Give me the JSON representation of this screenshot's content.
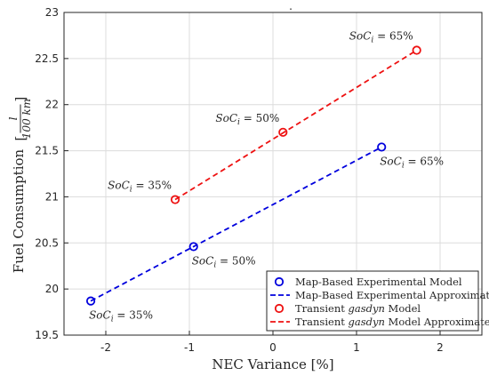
{
  "chart_data": {
    "type": "scatter",
    "xlabel": "NEC Variance [%]",
    "ylabel": "Fuel Consumption",
    "ylabel_unit": {
      "num": "l",
      "den": "100 km"
    },
    "title": ".",
    "xlim": [
      -2.5,
      2.5
    ],
    "ylim": [
      19.5,
      23
    ],
    "xticks": [
      -2,
      -1,
      0,
      1,
      2
    ],
    "yticks": [
      19.5,
      20,
      20.5,
      21,
      21.5,
      22,
      22.5,
      23
    ],
    "xtick_labels": [
      "-2",
      "-1",
      "0",
      "1",
      "2"
    ],
    "ytick_labels": [
      "19.5",
      "20",
      "20.5",
      "21",
      "21.5",
      "22",
      "22.5",
      "23"
    ],
    "grid": true,
    "legend_position": "bottom-right",
    "series": [
      {
        "name": "Map-Based Experimental Model",
        "kind": "markers",
        "color": "#0000dd",
        "x": [
          -2.18,
          -0.95,
          1.3
        ],
        "y": [
          19.87,
          20.46,
          21.54
        ]
      },
      {
        "name": "Map-Based Experimental Approximated",
        "kind": "dashed-line",
        "color": "#0000dd",
        "x": [
          -2.18,
          1.3
        ],
        "y": [
          19.87,
          21.54
        ]
      },
      {
        "name": "Transient gasdyn Model",
        "kind": "markers",
        "color": "#ee1111",
        "x": [
          -1.17,
          0.12,
          1.72
        ],
        "y": [
          20.97,
          21.7,
          22.59
        ]
      },
      {
        "name": "Transient gasdyn Model Approximated",
        "kind": "dashed-line",
        "color": "#ee1111",
        "x": [
          -1.17,
          1.72
        ],
        "y": [
          20.97,
          22.59
        ]
      }
    ],
    "annotations": [
      {
        "var": "SoC",
        "sub": "i",
        "value": "= 35%",
        "x": -2.18,
        "y": 19.87,
        "place": "below-right"
      },
      {
        "var": "SoC",
        "sub": "i",
        "value": "= 50%",
        "x": -0.95,
        "y": 20.46,
        "place": "below-right"
      },
      {
        "var": "SoC",
        "sub": "i",
        "value": "= 65%",
        "x": 1.3,
        "y": 21.54,
        "place": "below-right"
      },
      {
        "var": "SoC",
        "sub": "i",
        "value": "= 35%",
        "x": -1.17,
        "y": 20.97,
        "place": "above-left"
      },
      {
        "var": "SoC",
        "sub": "i",
        "value": "= 50%",
        "x": 0.12,
        "y": 21.7,
        "place": "above-left"
      },
      {
        "var": "SoC",
        "sub": "i",
        "value": "= 65%",
        "x": 1.72,
        "y": 22.59,
        "place": "above-left"
      }
    ],
    "legend": [
      {
        "parts": [
          "Map-Based Experimental Model"
        ],
        "italic": [
          false
        ],
        "symbol": "circle",
        "color": "#0000dd"
      },
      {
        "parts": [
          "Map-Based Experimental Approximated"
        ],
        "italic": [
          false
        ],
        "symbol": "dash",
        "color": "#0000dd"
      },
      {
        "parts": [
          "Transient ",
          "gasdyn",
          " Model"
        ],
        "italic": [
          false,
          true,
          false
        ],
        "symbol": "circle",
        "color": "#ee1111"
      },
      {
        "parts": [
          "Transient ",
          "gasdyn",
          " Model Approximated"
        ],
        "italic": [
          false,
          true,
          false
        ],
        "symbol": "dash",
        "color": "#ee1111"
      }
    ]
  }
}
